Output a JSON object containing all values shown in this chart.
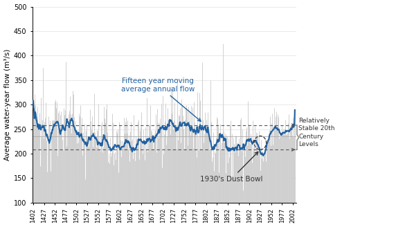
{
  "year_start": 1402,
  "year_end": 2007,
  "ylim": [
    100,
    500
  ],
  "yticks": [
    100,
    150,
    200,
    250,
    300,
    350,
    400,
    450,
    500
  ],
  "xticks": [
    1402,
    1427,
    1452,
    1477,
    1502,
    1527,
    1552,
    1577,
    1602,
    1627,
    1652,
    1677,
    1702,
    1727,
    1752,
    1777,
    1802,
    1827,
    1852,
    1877,
    1902,
    1927,
    1952,
    1977,
    2002
  ],
  "dashed_line_upper": 258,
  "dashed_line_lower": 208,
  "bar_color": "#d0d0d0",
  "line_color": "#2060a0",
  "ylabel": "Average water-year flow (m³/s)",
  "annotation_moving_avg": "Fifteen year moving\naverage annual flow",
  "annotation_dust_bowl": "1930's Dust Bowl",
  "annotation_stable": "Relatively\nStable 20th\nCentury\nLevels",
  "dashed_line_color": "#555555",
  "background_color": "#ffffff",
  "grid_color": "#e0e0e0"
}
